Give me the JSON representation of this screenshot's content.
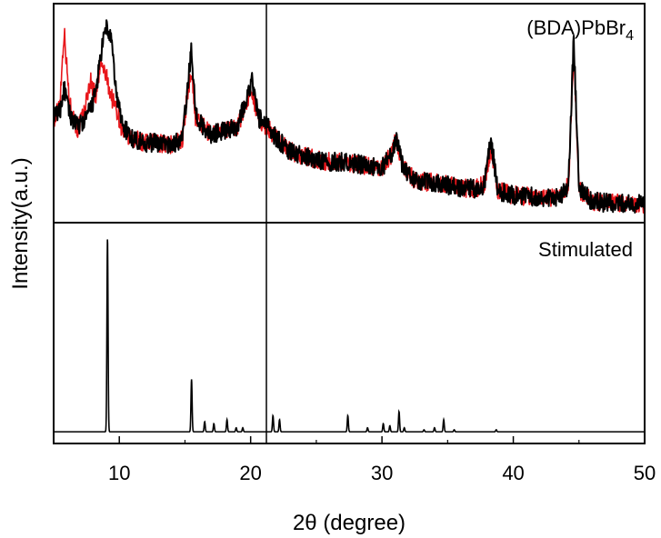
{
  "chart_data": [
    {
      "type": "line",
      "panel": "top",
      "label": "(BDA)PbBr",
      "label_subscript": "4",
      "xlim": [
        5,
        50
      ],
      "y_ticks_shown": false,
      "grid": false,
      "legend": "none",
      "vertical_marker_x": 21.2,
      "series": [
        {
          "color": "#e8161b",
          "x": [
            5.0,
            5.5,
            5.8,
            6.2,
            6.8,
            7.3,
            7.8,
            8.2,
            8.6,
            9.0,
            9.4,
            9.8,
            10.3,
            11.0,
            12.0,
            13.0,
            14.0,
            14.8,
            15.2,
            15.5,
            15.8,
            16.3,
            17.0,
            18.0,
            19.0,
            19.6,
            20.1,
            20.6,
            21.2,
            22.0,
            23.0,
            24.0,
            25.0,
            26.0,
            27.0,
            28.0,
            29.0,
            30.0,
            30.7,
            31.1,
            31.6,
            32.5,
            34.0,
            35.5,
            37.0,
            37.8,
            38.3,
            38.8,
            40.0,
            42.0,
            43.5,
            44.2,
            44.6,
            45.0,
            46.0,
            47.5,
            49.0,
            50.0
          ],
          "y": [
            0.44,
            0.58,
            0.9,
            0.55,
            0.42,
            0.5,
            0.66,
            0.58,
            0.74,
            0.68,
            0.58,
            0.52,
            0.4,
            0.38,
            0.36,
            0.36,
            0.35,
            0.38,
            0.6,
            0.72,
            0.48,
            0.44,
            0.4,
            0.42,
            0.44,
            0.54,
            0.62,
            0.46,
            0.44,
            0.38,
            0.32,
            0.3,
            0.28,
            0.27,
            0.27,
            0.26,
            0.25,
            0.24,
            0.3,
            0.38,
            0.24,
            0.18,
            0.17,
            0.15,
            0.14,
            0.16,
            0.34,
            0.13,
            0.11,
            0.1,
            0.1,
            0.16,
            0.82,
            0.14,
            0.08,
            0.07,
            0.07,
            0.07
          ]
        },
        {
          "color": "#000000",
          "x": [
            5.0,
            5.5,
            5.8,
            6.2,
            6.8,
            7.3,
            7.8,
            8.2,
            8.6,
            9.0,
            9.4,
            9.8,
            10.3,
            11.0,
            12.0,
            13.0,
            14.0,
            14.8,
            15.2,
            15.5,
            15.8,
            16.3,
            17.0,
            18.0,
            19.0,
            19.6,
            20.1,
            20.6,
            21.2,
            22.0,
            23.0,
            24.0,
            25.0,
            26.0,
            27.0,
            28.0,
            29.0,
            30.0,
            30.7,
            31.1,
            31.6,
            32.5,
            34.0,
            35.5,
            37.0,
            37.8,
            38.3,
            38.8,
            40.0,
            42.0,
            43.5,
            44.2,
            44.6,
            45.0,
            46.0,
            47.5,
            49.0,
            50.0
          ],
          "y": [
            0.48,
            0.52,
            0.62,
            0.5,
            0.44,
            0.46,
            0.52,
            0.6,
            0.78,
            0.92,
            0.84,
            0.58,
            0.44,
            0.38,
            0.36,
            0.36,
            0.35,
            0.38,
            0.62,
            0.82,
            0.5,
            0.44,
            0.4,
            0.42,
            0.44,
            0.56,
            0.66,
            0.48,
            0.45,
            0.38,
            0.32,
            0.3,
            0.28,
            0.27,
            0.27,
            0.26,
            0.25,
            0.24,
            0.3,
            0.38,
            0.24,
            0.18,
            0.17,
            0.15,
            0.14,
            0.16,
            0.38,
            0.13,
            0.11,
            0.1,
            0.1,
            0.16,
            0.86,
            0.14,
            0.08,
            0.07,
            0.07,
            0.07
          ]
        }
      ]
    },
    {
      "type": "line",
      "panel": "bottom",
      "label": "Stimulated",
      "xlim": [
        5,
        50
      ],
      "ylim": [
        0,
        1
      ],
      "grid": false,
      "legend": "none",
      "baseline_y": 0.04,
      "peaks": {
        "x": [
          9.1,
          15.5,
          16.5,
          17.2,
          18.2,
          18.9,
          19.4,
          21.7,
          22.2,
          24.9,
          25.3,
          26.2,
          27.4,
          28.9,
          30.1,
          30.6,
          31.3,
          31.7,
          33.2,
          34.0,
          34.7,
          35.5,
          36.6,
          37.1,
          37.6,
          38.7,
          39.6,
          40.4,
          42.1,
          44.0,
          45.2,
          46.4,
          47.9,
          49.2
        ],
        "y": [
          1.0,
          0.3,
          0.09,
          0.08,
          0.1,
          0.06,
          0.06,
          0.12,
          0.1,
          0.04,
          0.04,
          0.04,
          0.12,
          0.06,
          0.08,
          0.07,
          0.14,
          0.06,
          0.05,
          0.06,
          0.1,
          0.05,
          0.04,
          0.04,
          0.04,
          0.05,
          0.04,
          0.04,
          0.03,
          0.03,
          0.03,
          0.03,
          0.03,
          0.02
        ]
      }
    }
  ],
  "axes": {
    "x_ticks": [
      10,
      20,
      30,
      40,
      50
    ],
    "xlabel": "2θ (degree)",
    "ylabel": "Intensity(a.u.)"
  }
}
